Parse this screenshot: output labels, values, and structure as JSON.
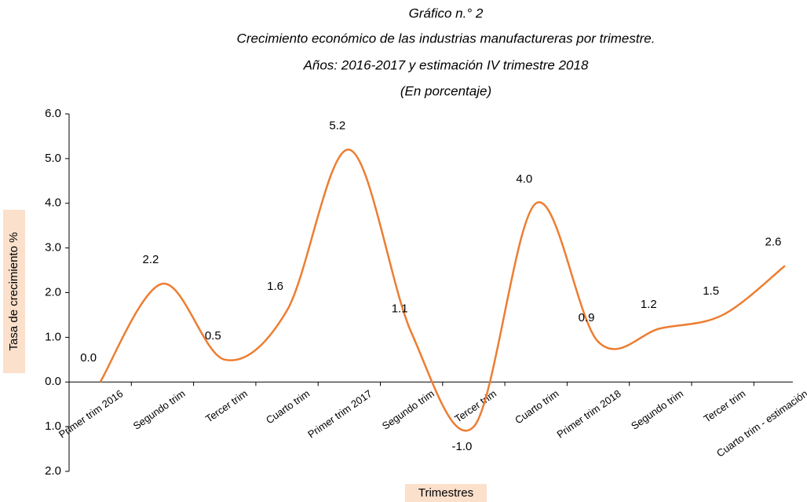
{
  "chart_data": {
    "type": "line",
    "title": "Gráfico n.° 2",
    "subtitle": [
      "Crecimiento económico de las industrias manufactureras por trimestre.",
      "Años: 2016-2017 y estimación IV trimestre 2018",
      "(En porcentaje)"
    ],
    "x_label": "Trimestres",
    "y_label": "Tasa de crecimiento %",
    "categories": [
      "Primer trim 2016",
      "Segundo trim",
      "Tercer trim",
      "Cuarto trim",
      "Primer trim 2017",
      "Segundo trim",
      "Tercer trim",
      "Cuarto trim",
      "Primer  trim 2018",
      "Segundo trim",
      "Tercer trim",
      "Cuarto trim - estimación"
    ],
    "values": [
      0.0,
      2.2,
      0.5,
      1.6,
      5.2,
      1.1,
      -1.0,
      4.0,
      0.9,
      1.2,
      1.5,
      2.6
    ],
    "value_labels": [
      "0.0",
      "2.2",
      "0.5",
      "1.6",
      "5.2",
      "1.1",
      "-1.0",
      "4.0",
      "0.9",
      "1.2",
      "1.5",
      "2.6"
    ],
    "color": "#ed7d31",
    "negative_color": "#ff0000",
    "smooth": true,
    "ylim": [
      -2,
      6
    ],
    "yticks": [
      {
        "value": -2,
        "label": "2.0"
      },
      {
        "value": -1,
        "label": "1.0"
      },
      {
        "value": 0,
        "label": "0.0"
      },
      {
        "value": 1,
        "label": "1.0"
      },
      {
        "value": 2,
        "label": "2.0"
      },
      {
        "value": 3,
        "label": "3.0"
      },
      {
        "value": 4,
        "label": "4.0"
      },
      {
        "value": 5,
        "label": "5.0"
      },
      {
        "value": 6,
        "label": "6.0"
      }
    ]
  }
}
